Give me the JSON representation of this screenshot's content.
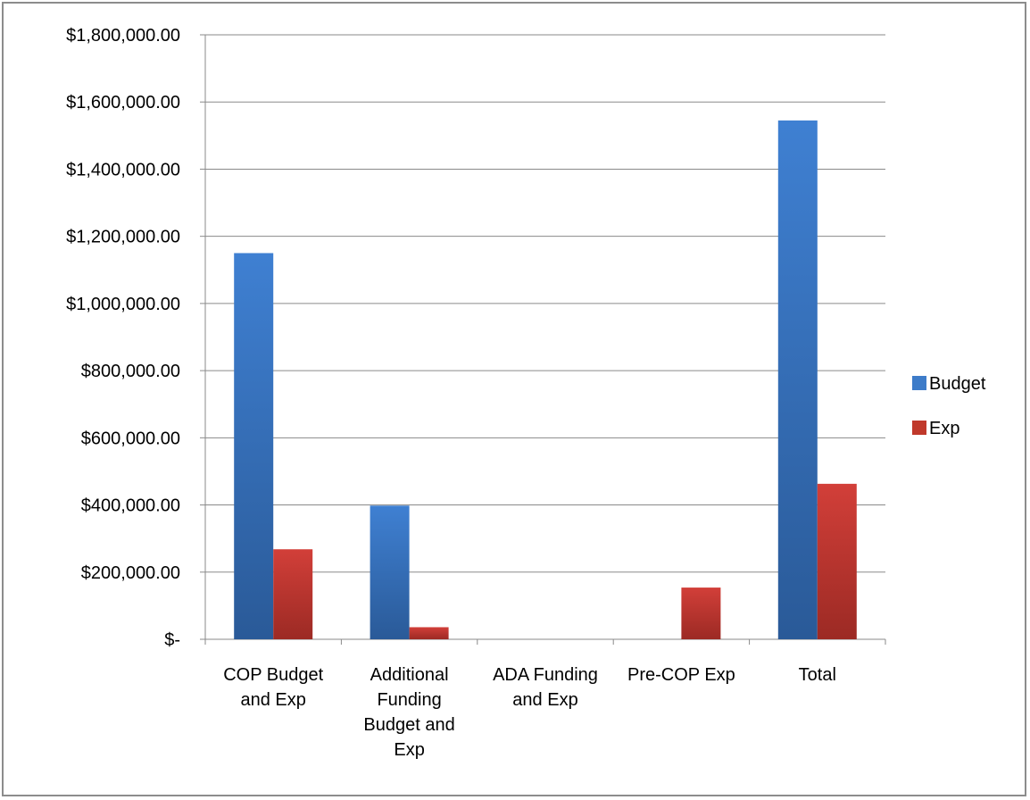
{
  "chart_data": {
    "type": "bar",
    "title": "",
    "xlabel": "",
    "ylabel": "",
    "categories": [
      [
        "COP Budget",
        "and Exp"
      ],
      [
        "Additional",
        "Funding",
        "Budget and",
        "Exp"
      ],
      [
        "ADA Funding",
        "and Exp"
      ],
      [
        "Pre-COP Exp"
      ],
      [
        "Total"
      ]
    ],
    "series": [
      {
        "name": "Budget",
        "color": "#3d7cc9",
        "values": [
          1150000,
          398000,
          0,
          0,
          1545000
        ]
      },
      {
        "name": "Exp",
        "color": "#c0392b",
        "values": [
          268000,
          36000,
          0,
          154000,
          463000
        ]
      }
    ],
    "ylim": [
      0,
      1800000
    ],
    "yticks": [
      {
        "value": 0,
        "label": "$-"
      },
      {
        "value": 200000,
        "label": "$200,000.00"
      },
      {
        "value": 400000,
        "label": "$400,000.00"
      },
      {
        "value": 600000,
        "label": "$600,000.00"
      },
      {
        "value": 800000,
        "label": "$800,000.00"
      },
      {
        "value": 1000000,
        "label": "$1,000,000.00"
      },
      {
        "value": 1200000,
        "label": "$1,200,000.00"
      },
      {
        "value": 1400000,
        "label": "$1,400,000.00"
      },
      {
        "value": 1600000,
        "label": "$1,600,000.00"
      },
      {
        "value": 1800000,
        "label": "$1,800,000.00"
      }
    ],
    "grid": true,
    "legend_position": "right"
  }
}
